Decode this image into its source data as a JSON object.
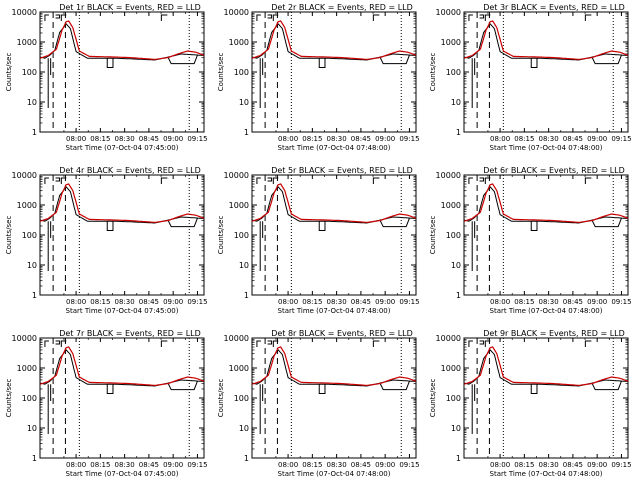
{
  "figure": {
    "panel_title_template": "Det {n}r BLACK = Events, RED = LLD",
    "ylabel": "Counts/sec",
    "xlabel_template": "Start Time (07-Oct-04 {t})"
  },
  "colors": {
    "events": "#000000",
    "lld": "#cc0000",
    "axes": "#000000",
    "background": "#ffffff"
  },
  "chart_data": [
    {
      "type": "line",
      "detector": "1r",
      "title": "Det 1r BLACK = Events, RED = LLD",
      "xlabel": "Start Time (07-Oct-04 07:45:00)",
      "ylabel": "Counts/sec",
      "x_ticks": [
        "08:00",
        "08:15",
        "08:30",
        "08:45",
        "09:00",
        "09:15"
      ],
      "y_ticks": [
        "1",
        "10",
        "100",
        "1000",
        "10000"
      ],
      "y_scale": "log",
      "ylim": [
        1,
        10000
      ],
      "grid": false,
      "series": [
        {
          "name": "Events",
          "color": "#000000"
        },
        {
          "name": "LLD",
          "color": "#cc0000"
        }
      ]
    },
    {
      "type": "line",
      "detector": "2r",
      "title": "Det 2r BLACK = Events, RED = LLD",
      "xlabel": "Start Time (07-Oct-04 07:48:00)",
      "ylabel": "Counts/sec",
      "x_ticks": [
        "08:00",
        "08:15",
        "08:30",
        "08:45",
        "09:00",
        "09:15"
      ],
      "y_ticks": [
        "1",
        "10",
        "100",
        "1000",
        "10000"
      ],
      "y_scale": "log",
      "ylim": [
        1,
        10000
      ],
      "grid": false,
      "series": [
        {
          "name": "Events",
          "color": "#000000"
        },
        {
          "name": "LLD",
          "color": "#cc0000"
        }
      ]
    },
    {
      "type": "line",
      "detector": "3r",
      "title": "Det 3r BLACK = Events, RED = LLD",
      "xlabel": "Start Time (07-Oct-04 07:48:00)",
      "ylabel": "Counts/sec",
      "x_ticks": [
        "08:00",
        "08:15",
        "08:30",
        "08:45",
        "09:00",
        "09:15"
      ],
      "y_ticks": [
        "1",
        "10",
        "100",
        "1000",
        "10000"
      ],
      "y_scale": "log",
      "ylim": [
        1,
        10000
      ],
      "grid": false,
      "series": [
        {
          "name": "Events",
          "color": "#000000"
        },
        {
          "name": "LLD",
          "color": "#cc0000"
        }
      ]
    },
    {
      "type": "line",
      "detector": "4r",
      "title": "Det 4r BLACK = Events, RED = LLD",
      "xlabel": "Start Time (07-Oct-04 07:45:00)",
      "ylabel": "Counts/sec",
      "x_ticks": [
        "08:00",
        "08:15",
        "08:30",
        "08:45",
        "09:00",
        "09:15"
      ],
      "y_ticks": [
        "1",
        "10",
        "100",
        "1000",
        "10000"
      ],
      "y_scale": "log",
      "ylim": [
        1,
        10000
      ],
      "grid": false,
      "series": [
        {
          "name": "Events",
          "color": "#000000"
        },
        {
          "name": "LLD",
          "color": "#cc0000"
        }
      ]
    },
    {
      "type": "line",
      "detector": "5r",
      "title": "Det 5r BLACK = Events, RED = LLD",
      "xlabel": "Start Time (07-Oct-04 07:48:00)",
      "ylabel": "Counts/sec",
      "x_ticks": [
        "08:00",
        "08:15",
        "08:30",
        "08:45",
        "09:00",
        "09:15"
      ],
      "y_ticks": [
        "1",
        "10",
        "100",
        "1000",
        "10000"
      ],
      "y_scale": "log",
      "ylim": [
        1,
        10000
      ],
      "grid": false,
      "series": [
        {
          "name": "Events",
          "color": "#000000"
        },
        {
          "name": "LLD",
          "color": "#cc0000"
        }
      ]
    },
    {
      "type": "line",
      "detector": "6r",
      "title": "Det 6r BLACK = Events, RED = LLD",
      "xlabel": "Start Time (07-Oct-04 07:48:00)",
      "ylabel": "Counts/sec",
      "x_ticks": [
        "08:00",
        "08:15",
        "08:30",
        "08:45",
        "09:00",
        "09:15"
      ],
      "y_ticks": [
        "1",
        "10",
        "100",
        "1000",
        "10000"
      ],
      "y_scale": "log",
      "ylim": [
        1,
        10000
      ],
      "grid": false,
      "series": [
        {
          "name": "Events",
          "color": "#000000"
        },
        {
          "name": "LLD",
          "color": "#cc0000"
        }
      ]
    },
    {
      "type": "line",
      "detector": "7r",
      "title": "Det 7r BLACK = Events, RED = LLD",
      "xlabel": "Start Time (07-Oct-04 07:45:00)",
      "ylabel": "Counts/sec",
      "x_ticks": [
        "08:00",
        "08:15",
        "08:30",
        "08:45",
        "09:00",
        "09:15"
      ],
      "y_ticks": [
        "1",
        "10",
        "100",
        "1000",
        "10000"
      ],
      "y_scale": "log",
      "ylim": [
        1,
        10000
      ],
      "grid": false,
      "series": [
        {
          "name": "Events",
          "color": "#000000"
        },
        {
          "name": "LLD",
          "color": "#cc0000"
        }
      ]
    },
    {
      "type": "line",
      "detector": "8r",
      "title": "Det 8r BLACK = Events, RED = LLD",
      "xlabel": "Start Time (07-Oct-04 07:48:00)",
      "ylabel": "Counts/sec",
      "x_ticks": [
        "08:00",
        "08:15",
        "08:30",
        "08:45",
        "09:00",
        "09:15"
      ],
      "y_ticks": [
        "1",
        "10",
        "100",
        "1000",
        "10000"
      ],
      "y_scale": "log",
      "ylim": [
        1,
        10000
      ],
      "grid": false,
      "series": [
        {
          "name": "Events",
          "color": "#000000"
        },
        {
          "name": "LLD",
          "color": "#cc0000"
        }
      ]
    },
    {
      "type": "line",
      "detector": "9r",
      "title": "Det 9r BLACK = Events, RED = LLD",
      "xlabel": "Start Time (07-Oct-04 07:48:00)",
      "ylabel": "Counts/sec",
      "x_ticks": [
        "08:00",
        "08:15",
        "08:30",
        "08:45",
        "09:00",
        "09:15"
      ],
      "y_ticks": [
        "1",
        "10",
        "100",
        "1000",
        "10000"
      ],
      "y_scale": "log",
      "ylim": [
        1,
        10000
      ],
      "grid": false,
      "series": [
        {
          "name": "Events",
          "color": "#000000"
        },
        {
          "name": "LLD",
          "color": "#cc0000"
        }
      ]
    }
  ]
}
